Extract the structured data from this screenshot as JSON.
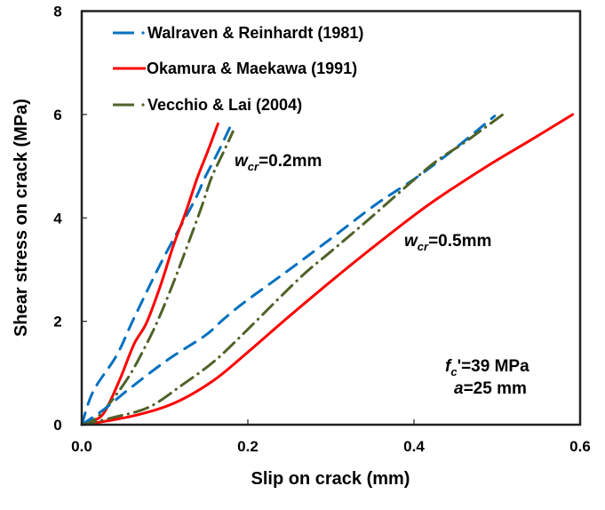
{
  "chart_data": {
    "type": "line",
    "title": "",
    "xlabel": "Slip on crack (mm)",
    "ylabel": "Shear stress on crack (MPa)",
    "xlim": [
      0,
      0.6
    ],
    "ylim": [
      0,
      8
    ],
    "xticks": [
      "0.0",
      "0.2",
      "0.4",
      "0.6"
    ],
    "xtick_values": [
      0,
      0.2,
      0.4,
      0.6
    ],
    "yticks": [
      "0",
      "2",
      "4",
      "6",
      "8"
    ],
    "ytick_values": [
      0,
      2,
      4,
      6,
      8
    ],
    "grid": false,
    "legend_position": "top-left",
    "legend": [
      {
        "name": "Walraven & Reinhardt (1981)",
        "color": "#0070C0",
        "style": "dash-dot"
      },
      {
        "name": "Okamura & Maekawa (1991)",
        "color": "#FF0000",
        "style": "solid"
      },
      {
        "name": "Vecchio & Lai (2004)",
        "color": "#4F6228",
        "style": "dash-dot"
      }
    ],
    "series": [
      {
        "name": "Walraven & Reinhardt (1981)",
        "crack_width": "0.2mm",
        "color": "#0070C0",
        "style": "dashed",
        "x": [
          0,
          0.014,
          0.042,
          0.062,
          0.097,
          0.135,
          0.148,
          0.165,
          0.181
        ],
        "y": [
          0,
          0.65,
          1.34,
          2.03,
          3.18,
          4.31,
          4.77,
          5.3,
          5.84
        ]
      },
      {
        "name": "Okamura & Maekawa (1991)",
        "crack_width": "0.2mm",
        "color": "#FF0000",
        "style": "solid",
        "x": [
          0,
          0.015,
          0.028,
          0.046,
          0.063,
          0.078,
          0.095,
          0.11,
          0.125,
          0.139,
          0.152,
          0.164
        ],
        "y": [
          0,
          0.08,
          0.26,
          0.88,
          1.56,
          1.97,
          2.7,
          3.45,
          4.1,
          4.77,
          5.3,
          5.82
        ]
      },
      {
        "name": "Vecchio & Lai (2004)",
        "crack_width": "0.2mm",
        "color": "#4F6228",
        "style": "dash-dot",
        "x": [
          0,
          0.015,
          0.031,
          0.057,
          0.078,
          0.092,
          0.108,
          0.123,
          0.144,
          0.156,
          0.17,
          0.182
        ],
        "y": [
          0,
          0.1,
          0.36,
          0.94,
          1.56,
          2.03,
          2.65,
          3.28,
          4.2,
          4.77,
          5.25,
          5.67
        ]
      },
      {
        "name": "Walraven & Reinhardt (1981)",
        "crack_width": "0.5mm",
        "color": "#0070C0",
        "style": "dashed",
        "x": [
          0,
          0.028,
          0.057,
          0.103,
          0.149,
          0.17,
          0.196,
          0.25,
          0.3,
          0.354,
          0.402,
          0.45,
          0.497
        ],
        "y": [
          0,
          0.31,
          0.69,
          1.25,
          1.73,
          2.03,
          2.37,
          3.0,
          3.6,
          4.26,
          4.77,
          5.35,
          5.97
        ]
      },
      {
        "name": "Okamura & Maekawa (1991)",
        "crack_width": "0.5mm",
        "color": "#FF0000",
        "style": "solid",
        "x": [
          0,
          0.022,
          0.067,
          0.113,
          0.159,
          0.199,
          0.25,
          0.308,
          0.36,
          0.418,
          0.486,
          0.54,
          0.591
        ],
        "y": [
          0,
          0.05,
          0.19,
          0.43,
          0.86,
          1.39,
          2.1,
          2.88,
          3.55,
          4.26,
          4.98,
          5.5,
          6.0
        ]
      },
      {
        "name": "Vecchio & Lai (2004)",
        "crack_width": "0.5mm",
        "color": "#4F6228",
        "style": "dash-dot",
        "x": [
          0,
          0.038,
          0.081,
          0.121,
          0.159,
          0.194,
          0.262,
          0.3,
          0.344,
          0.42,
          0.46,
          0.507
        ],
        "y": [
          0,
          0.14,
          0.34,
          0.77,
          1.22,
          1.75,
          2.83,
          3.35,
          3.95,
          5.01,
          5.45,
          6.0
        ]
      }
    ],
    "annotations": [
      {
        "id": "wcr-02",
        "main": "w",
        "sub": "cr",
        "rest": "=0.2mm"
      },
      {
        "id": "wcr-05",
        "main": "w",
        "sub": "cr",
        "rest": "=0.5mm"
      },
      {
        "id": "fc",
        "main": "f",
        "sub": "c",
        "rest": "'=39 MPa"
      },
      {
        "id": "a",
        "main": "a",
        "sub": "",
        "rest": "=25 mm"
      }
    ]
  }
}
